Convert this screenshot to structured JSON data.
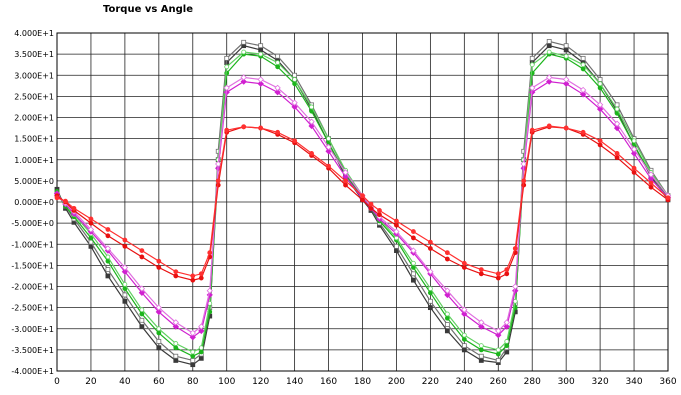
{
  "chart_data": {
    "type": "line",
    "title": "Torque vs Angle",
    "xlabel": "",
    "ylabel": "",
    "xlim": [
      0,
      360
    ],
    "ylim": [
      -40,
      40
    ],
    "grid": true,
    "x_ticks": [
      0,
      20,
      40,
      60,
      80,
      100,
      120,
      140,
      160,
      180,
      200,
      220,
      240,
      260,
      280,
      300,
      320,
      340,
      360
    ],
    "y_ticks": [
      -40,
      -35,
      -30,
      -25,
      -20,
      -15,
      -10,
      -5,
      0,
      5,
      10,
      15,
      20,
      25,
      30,
      35,
      40
    ],
    "y_tick_labels": [
      "-4.000E+1",
      "-3.500E+1",
      "-3.000E+1",
      "-2.500E+1",
      "-2.000E+1",
      "-1.500E+1",
      "-1.000E+1",
      "-5.000E+0",
      "0.000E+0",
      "5.000E+0",
      "1.000E+1",
      "1.500E+1",
      "2.000E+1",
      "2.500E+1",
      "3.000E+1",
      "3.500E+1",
      "4.000E+1"
    ],
    "x": [
      0,
      5,
      10,
      20,
      30,
      40,
      50,
      60,
      70,
      80,
      85,
      90,
      95,
      100,
      110,
      120,
      130,
      140,
      150,
      160,
      170,
      180,
      185,
      190,
      200,
      210,
      220,
      230,
      240,
      250,
      260,
      265,
      270,
      275,
      280,
      290,
      300,
      310,
      320,
      330,
      340,
      350,
      360
    ],
    "series": [
      {
        "color": "#3a3a3a",
        "marker": "square-filled",
        "values": [
          3.0,
          -1.5,
          -4.8,
          -10.5,
          -17.5,
          -23.5,
          -29.5,
          -34.5,
          -37.5,
          -38.5,
          -37.0,
          -27.0,
          10.0,
          33.0,
          37.0,
          36.0,
          33.5,
          29.0,
          22.0,
          14.0,
          6.0,
          0.5,
          -2.0,
          -5.5,
          -11.5,
          -18.5,
          -25.0,
          -30.5,
          -35.0,
          -37.5,
          -38.0,
          -35.5,
          -26.0,
          10.0,
          33.0,
          37.0,
          36.0,
          33.0,
          28.0,
          21.5,
          13.5,
          6.0,
          0.5
        ]
      },
      {
        "color": "#707070",
        "marker": "square-open",
        "values": [
          2.0,
          -1.0,
          -4.0,
          -9.5,
          -16.0,
          -22.0,
          -28.0,
          -33.0,
          -36.5,
          -37.5,
          -36.0,
          -25.0,
          12.0,
          34.0,
          37.8,
          37.0,
          34.5,
          30.0,
          23.0,
          15.0,
          7.0,
          1.0,
          -1.5,
          -5.0,
          -10.5,
          -17.0,
          -23.5,
          -29.0,
          -34.0,
          -36.5,
          -37.5,
          -34.5,
          -24.0,
          12.0,
          34.0,
          38.0,
          37.0,
          34.0,
          29.0,
          23.0,
          15.0,
          7.5,
          1.5
        ]
      },
      {
        "color": "#1cb51c",
        "marker": "circle-filled",
        "values": [
          2.5,
          -1.0,
          -3.5,
          -8.5,
          -14.0,
          -20.5,
          -26.5,
          -31.0,
          -34.5,
          -36.5,
          -35.5,
          -26.0,
          8.0,
          30.5,
          35.0,
          34.5,
          32.0,
          28.0,
          21.5,
          14.0,
          6.5,
          0.8,
          -1.5,
          -4.5,
          -9.0,
          -15.5,
          -21.5,
          -27.5,
          -32.5,
          -35.0,
          -36.0,
          -34.0,
          -25.0,
          8.0,
          30.5,
          35.0,
          34.0,
          31.5,
          27.0,
          21.0,
          13.5,
          6.5,
          1.0
        ]
      },
      {
        "color": "#60d060",
        "marker": "circle-open",
        "values": [
          2.0,
          -0.5,
          -3.0,
          -7.5,
          -13.0,
          -19.5,
          -25.5,
          -30.0,
          -33.5,
          -35.5,
          -34.5,
          -24.0,
          10.0,
          32.0,
          35.5,
          35.0,
          33.0,
          29.0,
          22.5,
          15.0,
          7.5,
          1.5,
          -1.0,
          -4.0,
          -8.5,
          -14.5,
          -20.5,
          -26.5,
          -31.5,
          -34.0,
          -35.0,
          -33.0,
          -23.5,
          10.0,
          32.5,
          35.5,
          34.5,
          32.5,
          28.0,
          22.0,
          14.5,
          7.0,
          1.5
        ]
      },
      {
        "color": "#d020d0",
        "marker": "diamond-filled",
        "values": [
          2.0,
          -0.5,
          -2.8,
          -7.0,
          -11.5,
          -16.5,
          -21.5,
          -26.0,
          -29.5,
          -32.0,
          -30.5,
          -22.0,
          8.0,
          26.0,
          28.5,
          28.0,
          26.0,
          22.5,
          18.0,
          12.0,
          6.0,
          0.8,
          -1.5,
          -4.0,
          -7.5,
          -12.0,
          -17.0,
          -22.0,
          -26.5,
          -29.5,
          -31.5,
          -29.5,
          -21.0,
          8.0,
          26.0,
          28.5,
          28.0,
          25.5,
          22.0,
          17.5,
          11.5,
          5.5,
          1.0
        ]
      },
      {
        "color": "#e070e0",
        "marker": "diamond-open",
        "values": [
          1.5,
          -0.3,
          -2.3,
          -6.5,
          -11.0,
          -15.5,
          -20.5,
          -25.0,
          -28.5,
          -31.0,
          -29.5,
          -21.0,
          9.0,
          27.0,
          29.5,
          29.0,
          27.0,
          23.5,
          19.0,
          13.0,
          7.0,
          1.5,
          -1.0,
          -3.5,
          -7.0,
          -11.5,
          -16.5,
          -21.0,
          -25.5,
          -28.5,
          -30.5,
          -28.5,
          -20.0,
          9.0,
          27.0,
          29.5,
          29.0,
          26.5,
          23.0,
          18.5,
          12.5,
          6.5,
          1.5
        ]
      },
      {
        "color": "#e81010",
        "marker": "circle-filled",
        "values": [
          1.5,
          0.0,
          -2.0,
          -5.0,
          -8.0,
          -10.5,
          -13.0,
          -15.5,
          -17.5,
          -18.5,
          -18.0,
          -13.0,
          4.0,
          16.5,
          17.8,
          17.5,
          16.0,
          14.0,
          11.0,
          8.0,
          4.0,
          0.5,
          -1.5,
          -3.0,
          -5.5,
          -8.5,
          -11.0,
          -13.5,
          -15.5,
          -17.0,
          -18.0,
          -17.0,
          -12.0,
          4.0,
          16.5,
          17.8,
          17.5,
          16.0,
          13.5,
          10.5,
          7.0,
          3.5,
          0.5
        ]
      },
      {
        "color": "#ff3030",
        "marker": "circle-filled",
        "values": [
          1.0,
          0.2,
          -1.5,
          -4.0,
          -6.5,
          -9.0,
          -11.5,
          -14.0,
          -16.5,
          -17.5,
          -17.0,
          -12.0,
          5.0,
          17.0,
          17.8,
          17.5,
          16.5,
          14.5,
          11.5,
          8.5,
          5.0,
          1.5,
          -0.5,
          -2.0,
          -4.5,
          -7.0,
          -9.5,
          -12.0,
          -14.5,
          -16.0,
          -17.0,
          -16.0,
          -11.0,
          5.0,
          17.0,
          18.0,
          17.5,
          16.5,
          14.5,
          11.5,
          8.0,
          4.5,
          1.0
        ]
      }
    ]
  }
}
